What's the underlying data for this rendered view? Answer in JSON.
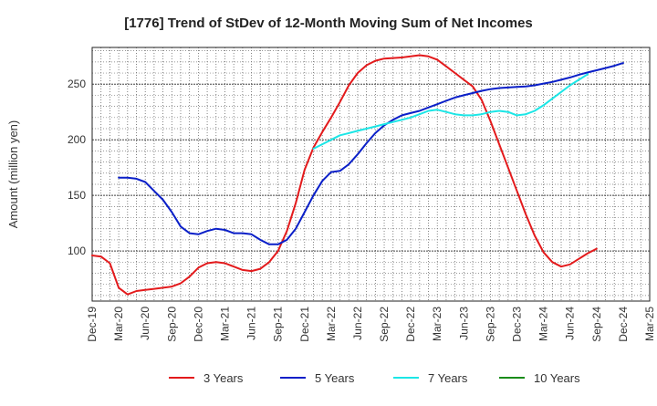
{
  "chart_data": {
    "type": "line",
    "title": "[1776]  Trend of StDev of 12-Month Moving Sum of Net Incomes",
    "xlabel": "",
    "ylabel": "Amount (million yen)",
    "x_tick_labels": [
      "Dec-19",
      "Mar-20",
      "Jun-20",
      "Sep-20",
      "Dec-20",
      "Mar-21",
      "Jun-21",
      "Sep-21",
      "Dec-21",
      "Mar-22",
      "Jun-22",
      "Sep-22",
      "Dec-22",
      "Mar-23",
      "Jun-23",
      "Sep-23",
      "Dec-23",
      "Mar-24",
      "Jun-24",
      "Sep-24",
      "Dec-24",
      "Mar-25"
    ],
    "y_ticks": [
      100,
      150,
      200,
      250
    ],
    "ylim": [
      55,
      283
    ],
    "grid": true,
    "legend_position": "bottom",
    "series": [
      {
        "name": "3 Years",
        "color": "#e31a1c",
        "start_index": 0,
        "values": [
          96,
          95,
          89,
          67,
          61,
          64,
          65,
          66,
          67,
          68,
          71,
          77,
          85,
          89,
          90,
          89,
          86,
          83,
          82,
          84,
          90,
          100,
          118,
          143,
          173,
          193,
          207,
          220,
          234,
          249,
          260,
          267,
          271,
          273,
          273.5,
          274,
          275,
          276,
          275,
          272,
          266,
          260,
          254,
          248,
          236,
          217,
          196,
          175,
          154,
          133,
          114,
          99,
          90,
          86,
          88,
          93,
          98,
          102
        ]
      },
      {
        "name": "5 Years",
        "color": "#0a1fc8",
        "start_index": 3,
        "values": [
          166,
          166,
          165,
          162,
          154,
          146,
          135,
          122,
          116,
          115,
          118,
          120,
          119,
          116,
          116,
          115,
          110,
          106,
          106,
          110,
          120,
          135,
          150,
          163,
          171,
          172,
          178,
          187,
          197,
          206,
          213,
          218,
          222,
          224,
          226,
          229,
          232,
          235,
          238,
          240,
          242,
          244,
          245.5,
          246.5,
          247,
          247.5,
          248,
          249,
          250.5,
          252,
          254,
          256,
          258.5,
          260.5,
          262.5,
          264.5,
          266.5,
          269
        ]
      },
      {
        "name": "7 Years",
        "color": "#1ce6e6",
        "start_index": 25,
        "values": [
          192,
          196,
          200,
          204,
          206,
          208,
          210,
          212,
          214,
          216,
          218,
          220,
          223,
          226,
          227,
          225,
          223,
          222,
          222,
          223,
          225,
          226,
          225,
          222,
          223,
          226,
          231,
          237,
          243,
          249,
          254,
          259
        ]
      },
      {
        "name": "10 Years",
        "color": "#1a8c1a",
        "start_index": 0,
        "values": []
      }
    ]
  }
}
